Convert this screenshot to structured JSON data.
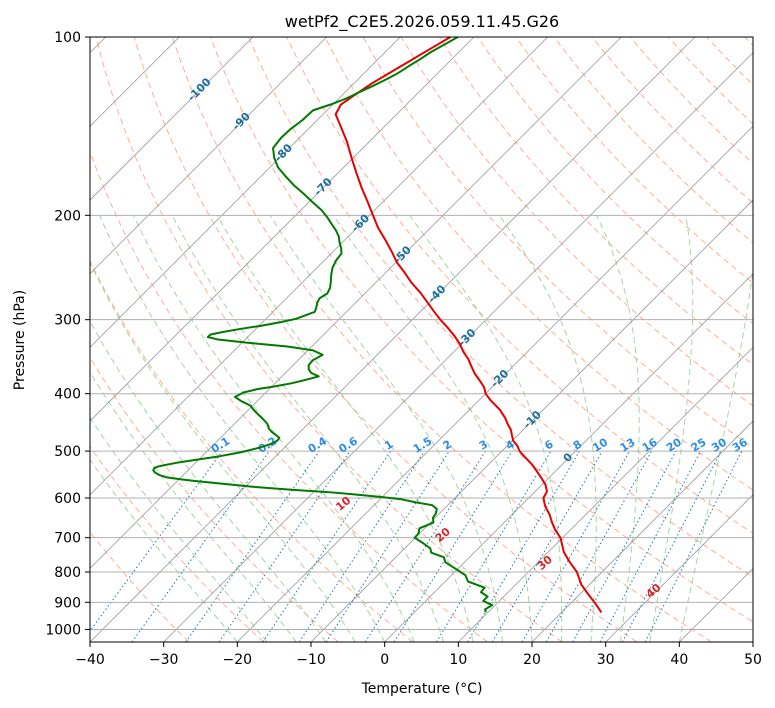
{
  "chart_data": {
    "type": "skew-t log-p sounding",
    "title": "wetPf2_C2E5.2026.059.11.45.G26",
    "xlabel": "Temperature (°C)",
    "ylabel": "Pressure (hPa)",
    "xlim": [
      -40,
      50
    ],
    "ylim": [
      1050,
      100
    ],
    "x_ticks": [
      -40,
      -30,
      -20,
      -10,
      0,
      10,
      20,
      30,
      40,
      50
    ],
    "y_ticks": [
      100,
      200,
      300,
      400,
      500,
      600,
      700,
      800,
      900,
      1000
    ],
    "y_tick_labels": [
      "100",
      "200",
      "300",
      "400",
      "500",
      "600",
      "700",
      "800",
      "900",
      "1000"
    ],
    "x_tick_labels": [
      "−40",
      "−30",
      "−20",
      "−10",
      "0",
      "10",
      "20",
      "30",
      "40",
      "50"
    ],
    "colors": {
      "temperature": "#e60000",
      "dewpoint": "#007a00",
      "isotherm": "#999999",
      "dry_adiabat": "#f9a78e",
      "moist_adiabat": "#8fcb8f",
      "mixing_ratio": "#1f77b4",
      "mixing_ratio_label": "#2a8ee8",
      "isotherm_label": "#1a6fa0",
      "dry_label": "#d62728",
      "moist_label": "#2ca02c"
    },
    "series": [
      {
        "name": "Temperature",
        "pressure": [
          936,
          920,
          900,
          870,
          840,
          800,
          770,
          740,
          700,
          680,
          660,
          640,
          620,
          600,
          585,
          570,
          555,
          540,
          525,
          510,
          500,
          490,
          480,
          470,
          460,
          450,
          440,
          425,
          410,
          400,
          390,
          380,
          370,
          360,
          350,
          340,
          330,
          320,
          310,
          300,
          290,
          280,
          270,
          260,
          250,
          240,
          230,
          220,
          210,
          200,
          190,
          180,
          170,
          160,
          150,
          140,
          135,
          130,
          125,
          120,
          115,
          110,
          105,
          100
        ],
        "values": [
          25.4,
          24.4,
          23.1,
          21.0,
          18.9,
          16.6,
          14.3,
          12.1,
          9.7,
          8.0,
          6.5,
          5.1,
          3.4,
          2.0,
          1.6,
          0.5,
          -1.0,
          -2.6,
          -4.3,
          -6.3,
          -7.6,
          -8.6,
          -9.9,
          -10.8,
          -11.7,
          -12.9,
          -14.0,
          -16.0,
          -18.5,
          -20.0,
          -21.1,
          -22.6,
          -24.2,
          -25.6,
          -27.0,
          -28.7,
          -30.2,
          -32.0,
          -34.0,
          -36.2,
          -38.3,
          -40.4,
          -42.6,
          -45.1,
          -47.4,
          -49.9,
          -52.1,
          -54.5,
          -57.1,
          -59.5,
          -62.0,
          -64.7,
          -67.4,
          -70.2,
          -73.1,
          -76.5,
          -78.3,
          -78.9,
          -78.3,
          -77.6,
          -76.6,
          -75.5,
          -74.4,
          -73.2
        ]
      },
      {
        "name": "Dewpoint",
        "pressure": [
          936,
          925,
          910,
          895,
          880,
          865,
          850,
          830,
          810,
          790,
          770,
          755,
          742,
          730,
          715,
          700,
          690,
          675,
          660,
          648,
          637,
          626,
          617,
          610,
          603,
          597,
          591,
          586,
          582,
          578,
          574,
          570,
          566,
          562,
          558,
          554,
          549,
          544,
          539,
          534,
          531,
          528,
          523,
          517,
          510,
          502,
          493,
          486,
          480,
          475,
          470,
          465,
          458,
          450,
          442,
          434,
          426,
          419,
          412,
          405,
          398,
          393,
          389,
          384,
          379,
          374,
          369,
          364,
          358,
          351,
          344,
          338,
          333,
          328,
          324,
          321,
          318,
          315,
          311,
          307,
          303,
          299,
          295,
          291,
          286,
          281,
          276,
          271,
          265,
          259,
          252,
          245,
          238,
          232,
          227,
          222,
          217,
          212,
          207,
          202,
          196,
          190,
          184,
          178,
          172,
          166,
          160,
          154,
          148,
          143,
          138,
          133,
          130,
          127,
          124,
          121,
          118,
          115,
          112,
          109,
          106,
          103,
          100
        ],
        "values": [
          9.7,
          9.2,
          9.6,
          7.8,
          7.8,
          6.3,
          6.2,
          3.1,
          1.9,
          -0.3,
          -2.6,
          -3.5,
          -5.8,
          -6.5,
          -8.2,
          -10.1,
          -10.1,
          -10.7,
          -9.6,
          -10.3,
          -10.5,
          -11.0,
          -12.1,
          -14.8,
          -17.1,
          -20.5,
          -24.6,
          -28.3,
          -32.5,
          -36.0,
          -39.2,
          -41.8,
          -44.6,
          -47.4,
          -49.7,
          -51.8,
          -53.2,
          -54.1,
          -54.7,
          -54.9,
          -54.6,
          -53.9,
          -52.5,
          -50.3,
          -47.6,
          -45.2,
          -43.3,
          -42.3,
          -41.9,
          -42.0,
          -42.8,
          -43.7,
          -44.7,
          -45.5,
          -46.7,
          -48.0,
          -49.3,
          -50.3,
          -52.1,
          -53.6,
          -53.0,
          -51.6,
          -49.7,
          -47.7,
          -46.3,
          -45.0,
          -46.5,
          -47.3,
          -47.9,
          -48.0,
          -47.4,
          -49.3,
          -53.3,
          -59.4,
          -63.7,
          -65.4,
          -65.4,
          -64.2,
          -62.1,
          -59.6,
          -57.6,
          -55.9,
          -55.1,
          -54.3,
          -54.7,
          -55.2,
          -55.5,
          -55.1,
          -55.5,
          -56.2,
          -57.1,
          -57.9,
          -58.4,
          -58.6,
          -59.4,
          -60.4,
          -61.3,
          -62.5,
          -63.9,
          -65.3,
          -67.2,
          -69.5,
          -71.8,
          -74.3,
          -76.6,
          -78.9,
          -80.7,
          -82.2,
          -82.5,
          -82.4,
          -82.0,
          -81.9,
          -80.3,
          -79.0,
          -78.1,
          -77.1,
          -76.2,
          -75.4,
          -74.9,
          -74.3,
          -73.8,
          -73.0,
          -72.2
        ]
      }
    ],
    "isotherm_labels": [
      "-100",
      "-90",
      "-80",
      "-70",
      "-60",
      "-50",
      "-40",
      "-30",
      "-20",
      "-10",
      "0"
    ],
    "mixing_ratio_labels": [
      "0.1",
      "0.2",
      "0.4",
      "0.6",
      "1",
      "1.5",
      "2",
      "3",
      "4",
      "6",
      "8",
      "10",
      "13",
      "16",
      "20",
      "25",
      "30",
      "36"
    ],
    "dry_adiabat_labels": [
      "10",
      "20",
      "30",
      "40"
    ]
  }
}
